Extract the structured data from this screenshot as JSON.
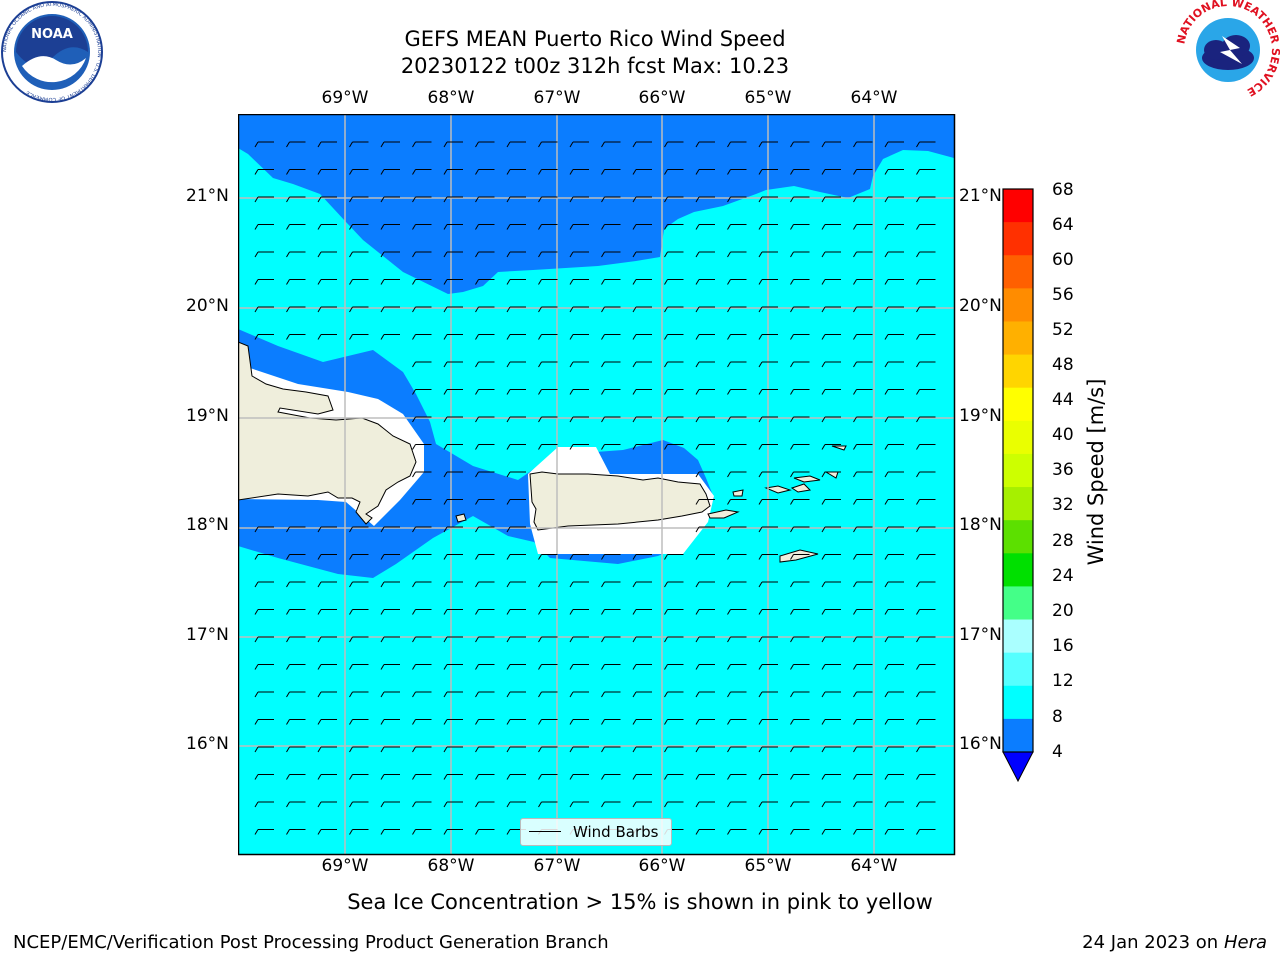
{
  "title": {
    "line1": "GEFS MEAN Puerto Rico Wind Speed",
    "line2": "20230122 t00z 312h fcst   Max: 10.23"
  },
  "lon_labels": [
    "69°W",
    "68°W",
    "67°W",
    "66°W",
    "65°W",
    "64°W"
  ],
  "lat_labels": [
    "21°N",
    "20°N",
    "19°N",
    "18°N",
    "17°N",
    "16°N"
  ],
  "colorbar": {
    "label": "Wind Speed [m/s]",
    "ticks": [
      "68",
      "64",
      "60",
      "56",
      "52",
      "48",
      "44",
      "40",
      "36",
      "32",
      "28",
      "24",
      "20",
      "16",
      "12",
      "8",
      "4"
    ],
    "colors": [
      "#ff0000",
      "#ff3000",
      "#ff6000",
      "#ff8c00",
      "#ffb000",
      "#ffd500",
      "#ffff00",
      "#eaff00",
      "#cdff00",
      "#a6f000",
      "#5ce000",
      "#00e000",
      "#44ff88",
      "#aaffff",
      "#55ffff",
      "#00ffff",
      "#0b7dff"
    ],
    "extend_color": "#0000ff"
  },
  "map": {
    "colors": {
      "ocean_fast": "#00ffff",
      "ocean_slow": "#0b7dff",
      "land": "#efeedc",
      "grid": "#bdbdbd"
    }
  },
  "legend": {
    "label": "Wind Barbs"
  },
  "caption": "Sea Ice Concentration > 15% is shown in pink to yellow",
  "footer": {
    "left": "NCEP/EMC/Verification Post Processing Product Generation Branch",
    "date": "24 Jan 2023 on ",
    "machine": "Hera"
  },
  "logos": {
    "noaa": "NOAA",
    "noaa_ring": "NATIONAL OCEANIC AND ATMOSPHERIC ADMINISTRATION · U.S. DEPARTMENT OF COMMERCE",
    "nws_ring": "NATIONAL WEATHER SERVICE"
  }
}
